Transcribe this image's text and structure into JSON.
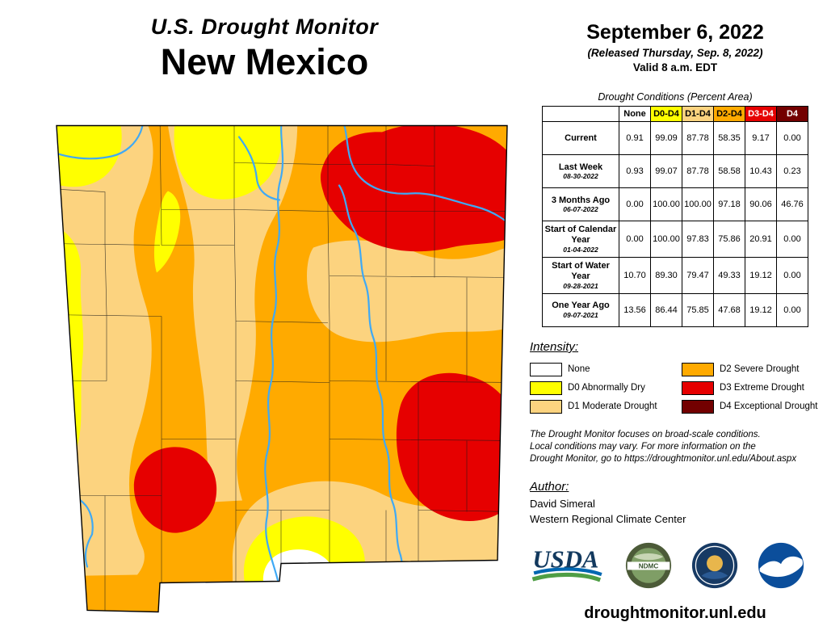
{
  "header": {
    "title": "U.S. Drought Monitor",
    "state": "New Mexico"
  },
  "date_block": {
    "date": "September 6, 2022",
    "released": "(Released Thursday, Sep. 8, 2022)",
    "valid": "Valid 8 a.m. EDT"
  },
  "table": {
    "caption": "Drought Conditions (Percent Area)",
    "columns": [
      "None",
      "D0-D4",
      "D1-D4",
      "D2-D4",
      "D3-D4",
      "D4"
    ],
    "column_colors": [
      "#FFFFFF",
      "#FFFF00",
      "#FCD37F",
      "#FFAA00",
      "#E60000",
      "#730000"
    ],
    "column_text_colors": [
      "#000000",
      "#000000",
      "#000000",
      "#000000",
      "#FFFFFF",
      "#FFFFFF"
    ],
    "rows": [
      {
        "label": "Current",
        "sub": "",
        "values": [
          "0.91",
          "99.09",
          "87.78",
          "58.35",
          "9.17",
          "0.00"
        ]
      },
      {
        "label": "Last Week",
        "sub": "08-30-2022",
        "values": [
          "0.93",
          "99.07",
          "87.78",
          "58.58",
          "10.43",
          "0.23"
        ]
      },
      {
        "label": "3 Months Ago",
        "sub": "06-07-2022",
        "values": [
          "0.00",
          "100.00",
          "100.00",
          "97.18",
          "90.06",
          "46.76"
        ]
      },
      {
        "label": "Start of Calendar Year",
        "sub": "01-04-2022",
        "values": [
          "0.00",
          "100.00",
          "97.83",
          "75.86",
          "20.91",
          "0.00"
        ]
      },
      {
        "label": "Start of Water Year",
        "sub": "09-28-2021",
        "values": [
          "10.70",
          "89.30",
          "79.47",
          "49.33",
          "19.12",
          "0.00"
        ]
      },
      {
        "label": "One Year Ago",
        "sub": "09-07-2021",
        "values": [
          "13.56",
          "86.44",
          "75.85",
          "47.68",
          "19.12",
          "0.00"
        ]
      }
    ]
  },
  "intensity": {
    "heading": "Intensity:",
    "items": [
      {
        "label": "None",
        "color": "#FFFFFF"
      },
      {
        "label": "D0 Abnormally Dry",
        "color": "#FFFF00"
      },
      {
        "label": "D1 Moderate Drought",
        "color": "#FCD37F"
      },
      {
        "label": "D2 Severe Drought",
        "color": "#FFAA00"
      },
      {
        "label": "D3 Extreme Drought",
        "color": "#E60000"
      },
      {
        "label": "D4 Exceptional Drought",
        "color": "#730000"
      }
    ]
  },
  "disclaimer": {
    "lines": [
      "The Drought Monitor focuses on broad-scale conditions.",
      "Local conditions may vary. For more information on the",
      "Drought Monitor, go to https://droughtmonitor.unl.edu/About.aspx"
    ]
  },
  "author": {
    "heading": "Author:",
    "name": "David Simeral",
    "org": "Western Regional Climate Center"
  },
  "logos": [
    {
      "name": "usda-logo",
      "label": "USDA"
    },
    {
      "name": "ndmc-logo",
      "label": "NDMC"
    },
    {
      "name": "commerce-logo",
      "label": ""
    },
    {
      "name": "noaa-logo",
      "label": ""
    }
  ],
  "site_url": "droughtmonitor.unl.edu",
  "map": {
    "river_color": "#3FA9F5"
  }
}
